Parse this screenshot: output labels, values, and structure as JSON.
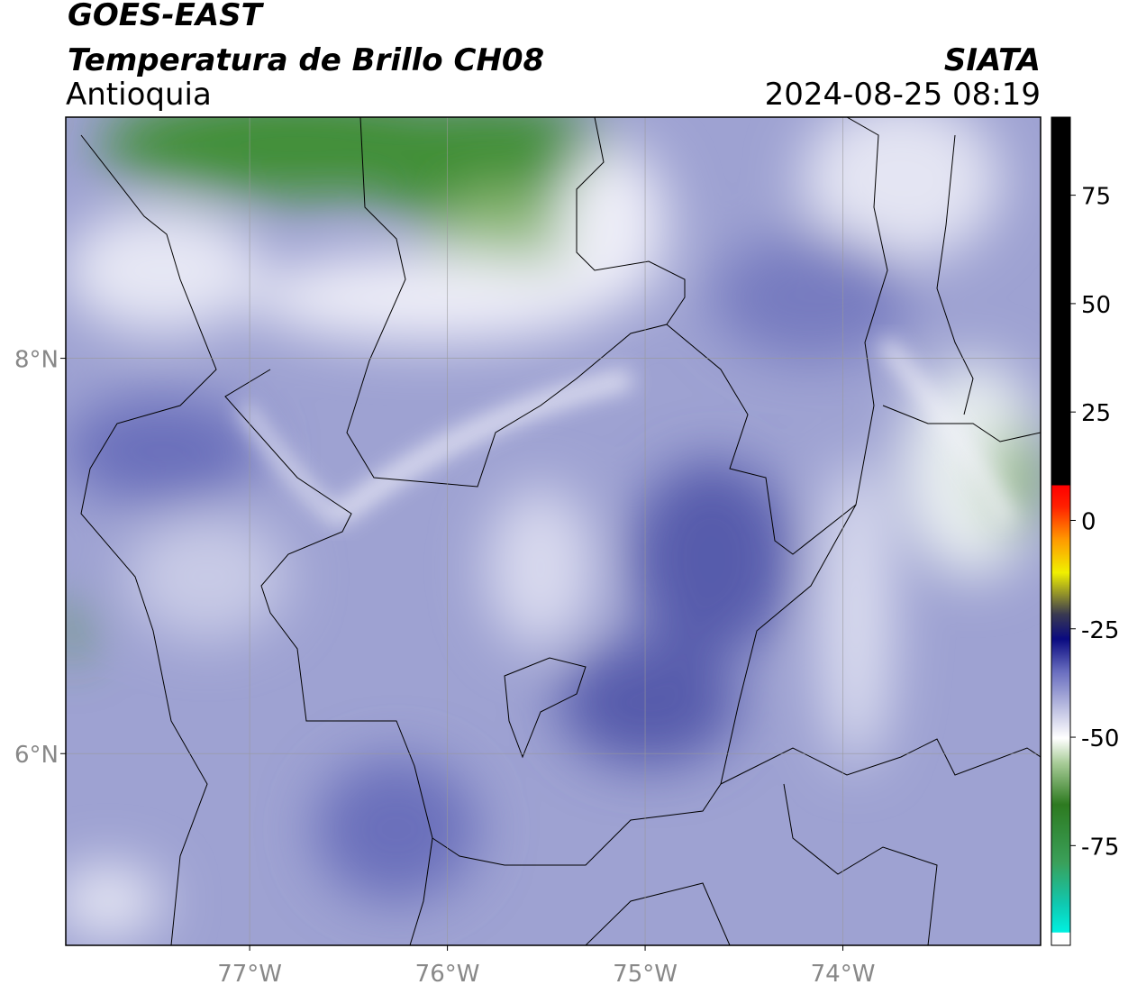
{
  "header": {
    "title": "GOES-EAST",
    "subtitle": "Temperatura de Brillo CH08",
    "region": "Antioquia",
    "source": "SIATA",
    "timestamp": "2024-08-25 08:19"
  },
  "map": {
    "lon_range": [
      -77.93,
      -73.0
    ],
    "lat_range": [
      5.03,
      9.22
    ],
    "lon_ticks": [
      {
        "value": -77,
        "label": "77°W"
      },
      {
        "value": -76,
        "label": "76°W"
      },
      {
        "value": -75,
        "label": "75°W"
      },
      {
        "value": -74,
        "label": "74°W"
      }
    ],
    "lat_ticks": [
      {
        "value": 8,
        "label": "8°N"
      },
      {
        "value": 6,
        "label": "6°N"
      }
    ]
  },
  "colorbar": {
    "range": [
      -98,
      93
    ],
    "ticks": [
      75,
      50,
      25,
      0,
      -25,
      -50,
      -75
    ]
  }
}
